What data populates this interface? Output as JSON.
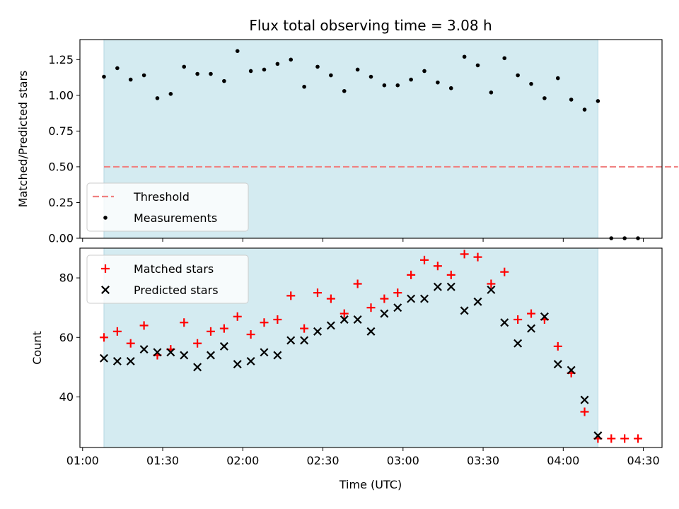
{
  "chart_data": {
    "title": "Flux total observing time = 3.08 h",
    "xlabel": "Time (UTC)",
    "x_ticks": [
      "01:00",
      "01:30",
      "02:00",
      "02:30",
      "03:00",
      "03:30",
      "04:00",
      "04:30"
    ],
    "x_tick_minutes": [
      60,
      90,
      120,
      150,
      180,
      210,
      240,
      270
    ],
    "x_range_minutes": [
      59,
      277
    ],
    "shaded_span_minutes": [
      68,
      253
    ],
    "shaded_color": "#d4ebf1",
    "x_minutes": [
      68,
      73,
      78,
      83,
      88,
      93,
      98,
      103,
      108,
      113,
      118,
      123,
      128,
      133,
      138,
      143,
      148,
      153,
      158,
      163,
      168,
      173,
      178,
      183,
      188,
      193,
      198,
      203,
      208,
      213,
      218,
      223,
      228,
      233,
      238,
      243,
      248,
      253,
      258,
      263,
      268
    ],
    "panels": [
      {
        "type": "scatter",
        "ylabel": "Matched/Predicted stars",
        "ylim": [
          0,
          1.39
        ],
        "y_ticks": [
          "0.00",
          "0.25",
          "0.50",
          "0.75",
          "1.00",
          "1.25"
        ],
        "y_tick_values": [
          0,
          0.25,
          0.5,
          0.75,
          1.0,
          1.25
        ],
        "threshold": {
          "name": "Threshold",
          "value": 0.5,
          "color": "#f08080",
          "x_range_minutes": [
            68,
            283
          ]
        },
        "series": [
          {
            "name": "Measurements",
            "color": "#000000",
            "marker": "dot",
            "values": [
              1.13,
              1.19,
              1.11,
              1.14,
              0.98,
              1.01,
              1.2,
              1.15,
              1.15,
              1.1,
              1.31,
              1.17,
              1.18,
              1.22,
              1.25,
              1.06,
              1.2,
              1.14,
              1.03,
              1.18,
              1.13,
              1.07,
              1.07,
              1.11,
              1.17,
              1.09,
              1.05,
              1.27,
              1.21,
              1.02,
              1.26,
              1.14,
              1.08,
              0.98,
              1.12,
              0.97,
              0.9,
              0.96,
              0.0,
              0.0,
              0.0
            ]
          }
        ],
        "legend": "lower-left"
      },
      {
        "type": "scatter",
        "ylabel": "Count",
        "ylim": [
          23,
          90
        ],
        "y_ticks": [
          "40",
          "60",
          "80"
        ],
        "y_tick_values": [
          40,
          60,
          80
        ],
        "series": [
          {
            "name": "Matched stars",
            "color": "#ff0000",
            "marker": "plus",
            "values": [
              60,
              62,
              58,
              64,
              54,
              56,
              65,
              58,
              62,
              63,
              67,
              61,
              65,
              66,
              74,
              63,
              75,
              73,
              68,
              78,
              70,
              73,
              75,
              81,
              86,
              84,
              81,
              88,
              87,
              78,
              82,
              66,
              68,
              66,
              57,
              48,
              35,
              26,
              26,
              26,
              26
            ]
          },
          {
            "name": "Predicted stars",
            "color": "#000000",
            "marker": "x",
            "values": [
              53,
              52,
              52,
              56,
              55,
              55,
              54,
              50,
              54,
              57,
              51,
              52,
              55,
              54,
              59,
              59,
              62,
              64,
              66,
              66,
              62,
              68,
              70,
              73,
              73,
              77,
              77,
              69,
              72,
              76,
              65,
              58,
              63,
              67,
              51,
              49,
              39,
              27,
              null,
              null,
              null
            ]
          }
        ],
        "legend": "upper-left"
      }
    ]
  }
}
